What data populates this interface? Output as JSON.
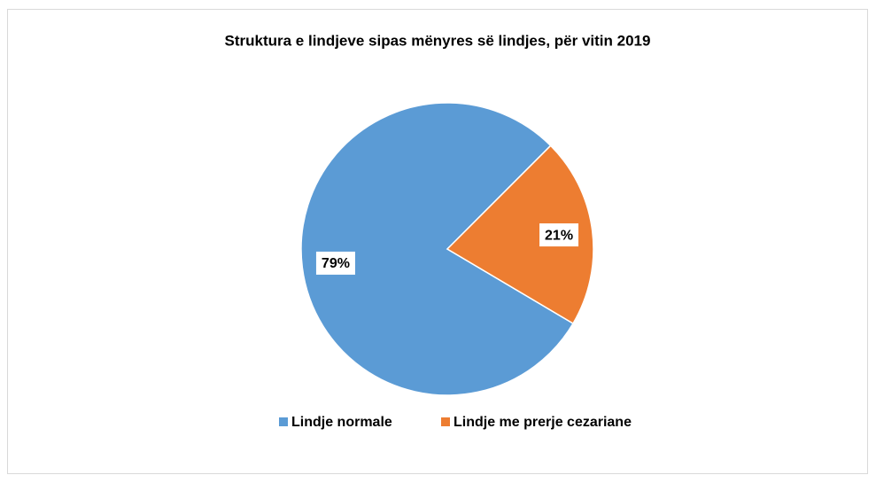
{
  "chart_data": {
    "type": "pie",
    "title": "Struktura e lindjeve sipas mënyres së lindjes, për vitin 2019",
    "categories": [
      "Lindje normale",
      "Lindje me prerje cezariane"
    ],
    "values": [
      79,
      21
    ],
    "value_labels": [
      "79%",
      "21%"
    ],
    "colors": [
      "#5b9bd5",
      "#ed7d31"
    ],
    "legend": "bottom"
  }
}
